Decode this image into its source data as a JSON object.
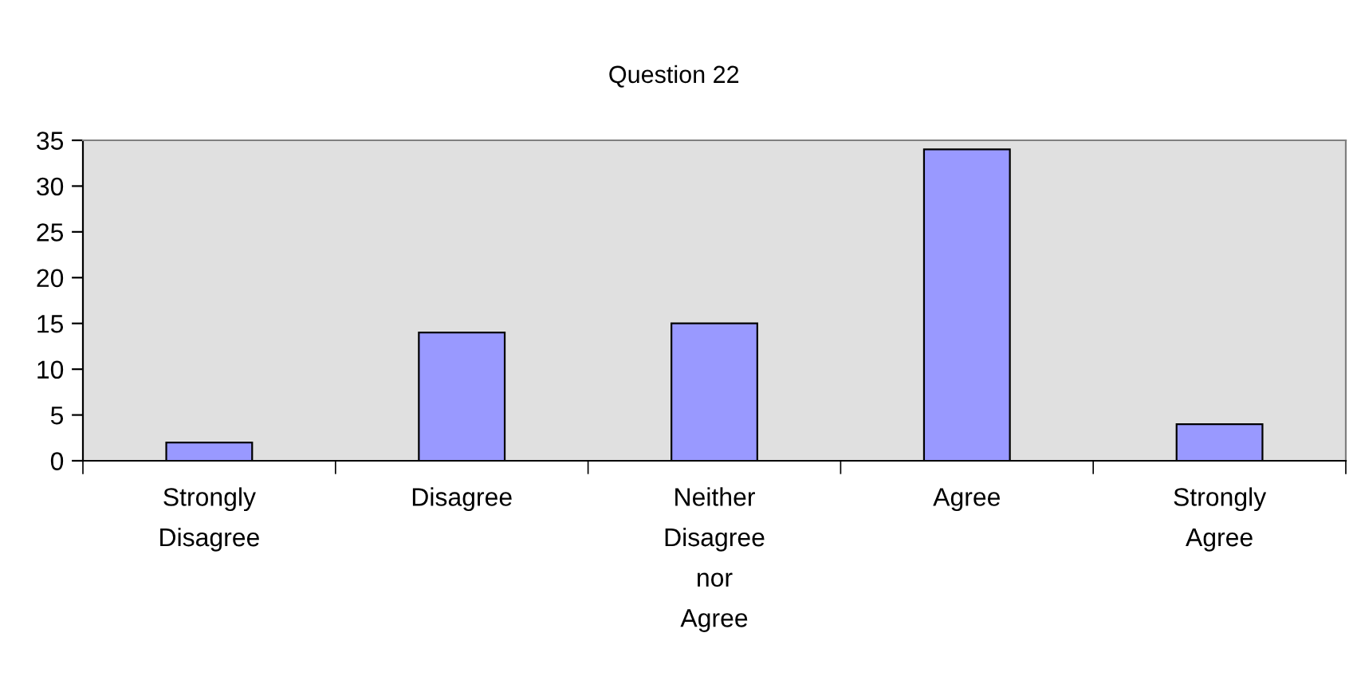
{
  "chart_data": {
    "type": "bar",
    "title": "Question 22",
    "categories": [
      "Strongly\nDisagree",
      "Disagree",
      "Neither\nDisagree\nnor\nAgree",
      "Agree",
      "Strongly\nAgree"
    ],
    "values": [
      2,
      14,
      15,
      34,
      4
    ],
    "color": "#9999ff",
    "ylim": [
      0,
      35
    ],
    "yticks": [
      0,
      5,
      10,
      15,
      20,
      25,
      30,
      35
    ],
    "grid": false,
    "legend": false
  }
}
